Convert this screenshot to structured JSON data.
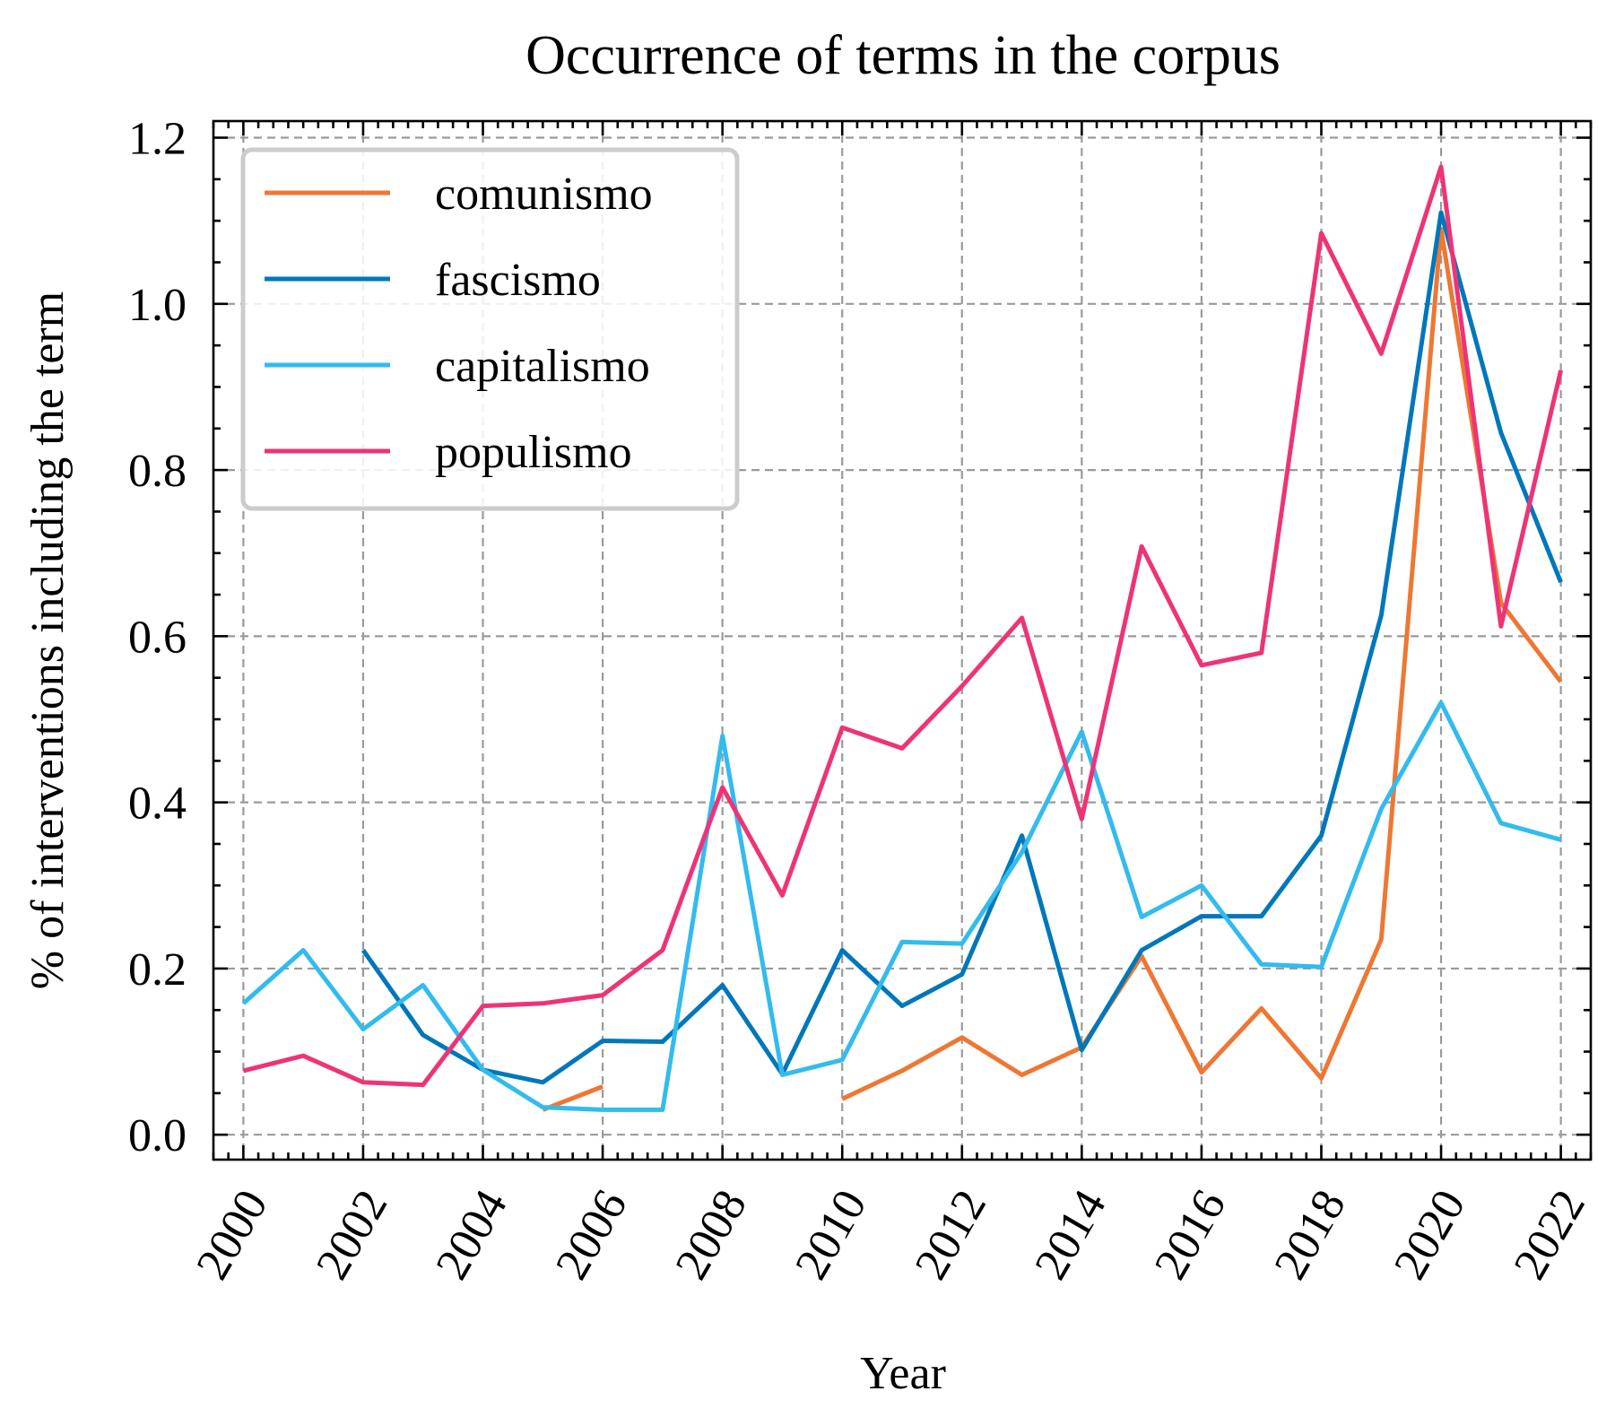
{
  "chart_data": {
    "type": "line",
    "title": "Occurrence of terms in the corpus",
    "xlabel": "Year",
    "ylabel": "% of interventions including the term",
    "xlim": [
      1999.5,
      2022.5
    ],
    "ylim": [
      -0.03,
      1.22
    ],
    "x_ticks": [
      2000,
      2002,
      2004,
      2006,
      2008,
      2010,
      2012,
      2014,
      2016,
      2018,
      2020,
      2022
    ],
    "x_tick_labels": [
      "2000",
      "2002",
      "2004",
      "2006",
      "2008",
      "2010",
      "2012",
      "2014",
      "2016",
      "2018",
      "2020",
      "2022"
    ],
    "y_ticks": [
      0.0,
      0.2,
      0.4,
      0.6,
      0.8,
      1.0,
      1.2
    ],
    "y_tick_labels": [
      "0.0",
      "0.2",
      "0.4",
      "0.6",
      "0.8",
      "1.0",
      "1.2"
    ],
    "grid": true,
    "legend_position": "top-left",
    "x": [
      2000,
      2001,
      2002,
      2003,
      2004,
      2005,
      2006,
      2007,
      2008,
      2009,
      2010,
      2011,
      2012,
      2013,
      2014,
      2015,
      2016,
      2017,
      2018,
      2019,
      2020,
      2021,
      2022
    ],
    "series": [
      {
        "name": "comunismo",
        "color": "#ee7733",
        "values": [
          null,
          null,
          null,
          null,
          null,
          0.03,
          0.058,
          null,
          null,
          null,
          0.043,
          0.077,
          0.117,
          0.072,
          0.105,
          0.215,
          0.075,
          0.152,
          0.068,
          0.235,
          1.09,
          0.64,
          0.545
        ]
      },
      {
        "name": "fascismo",
        "color": "#0077bb",
        "values": [
          null,
          null,
          0.222,
          0.12,
          0.078,
          0.063,
          0.113,
          0.112,
          0.18,
          0.073,
          0.222,
          0.155,
          0.193,
          0.36,
          0.102,
          0.222,
          0.263,
          0.263,
          0.36,
          0.625,
          1.11,
          0.845,
          0.665
        ]
      },
      {
        "name": "capitalismo",
        "color": "#33bbee",
        "values": [
          0.158,
          0.222,
          0.127,
          0.18,
          0.078,
          0.033,
          0.03,
          0.03,
          0.48,
          0.072,
          0.09,
          0.232,
          0.23,
          0.34,
          0.485,
          0.262,
          0.3,
          0.205,
          0.202,
          0.392,
          0.52,
          0.375,
          0.355
        ]
      },
      {
        "name": "populismo",
        "color": "#ee3377",
        "values": [
          0.077,
          0.095,
          0.063,
          0.06,
          0.155,
          0.158,
          0.168,
          0.222,
          0.418,
          0.288,
          0.49,
          0.465,
          0.54,
          0.622,
          0.38,
          0.708,
          0.565,
          0.58,
          1.085,
          0.94,
          1.165,
          0.612,
          0.92
        ]
      }
    ]
  }
}
